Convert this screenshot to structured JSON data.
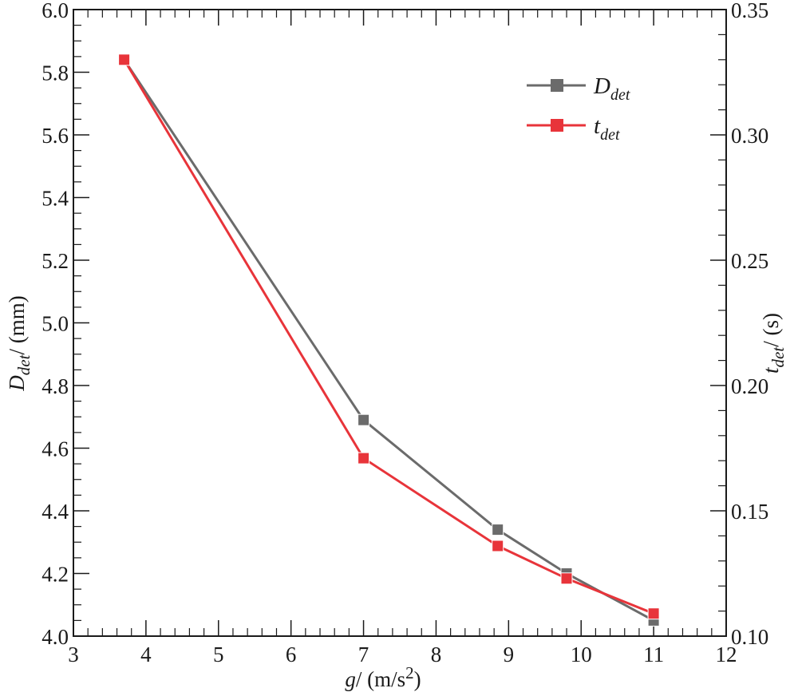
{
  "chart_data": {
    "type": "line",
    "x": [
      3.7,
      7.0,
      8.85,
      9.8,
      11.0
    ],
    "series": [
      {
        "name": "D_det",
        "legend_main": "D",
        "legend_sub": "det",
        "axis": "left",
        "color": "#6b6b6b",
        "values": [
          5.84,
          4.69,
          4.34,
          4.2,
          4.05
        ]
      },
      {
        "name": "t_det",
        "legend_main": "t",
        "legend_sub": "det",
        "axis": "right",
        "color": "#e8343a",
        "values": [
          0.33,
          0.171,
          0.136,
          0.123,
          0.109
        ]
      }
    ],
    "xlim": [
      3,
      12
    ],
    "ylim_left": [
      4.0,
      6.0
    ],
    "ylim_right": [
      0.1,
      0.35
    ],
    "xticks": [
      "3",
      "4",
      "5",
      "6",
      "7",
      "8",
      "9",
      "10",
      "11",
      "12"
    ],
    "yticks_left": [
      "4.0",
      "4.2",
      "4.4",
      "4.6",
      "4.8",
      "5.0",
      "5.2",
      "5.4",
      "5.6",
      "5.8",
      "6.0"
    ],
    "yticks_right": [
      "0.10",
      "0.15",
      "0.20",
      "0.25",
      "0.30",
      "0.35"
    ],
    "xlabel": {
      "main": "g",
      "rest": "/ (m/s",
      "sup": "2",
      "close": ")"
    },
    "ylabel_left": {
      "main": "D",
      "sub": "det",
      "rest": "/ (mm)"
    },
    "ylabel_right": {
      "main": "t",
      "sub": "det",
      "rest": "/ (s)"
    },
    "legend_position": "top-right",
    "grid": false
  }
}
